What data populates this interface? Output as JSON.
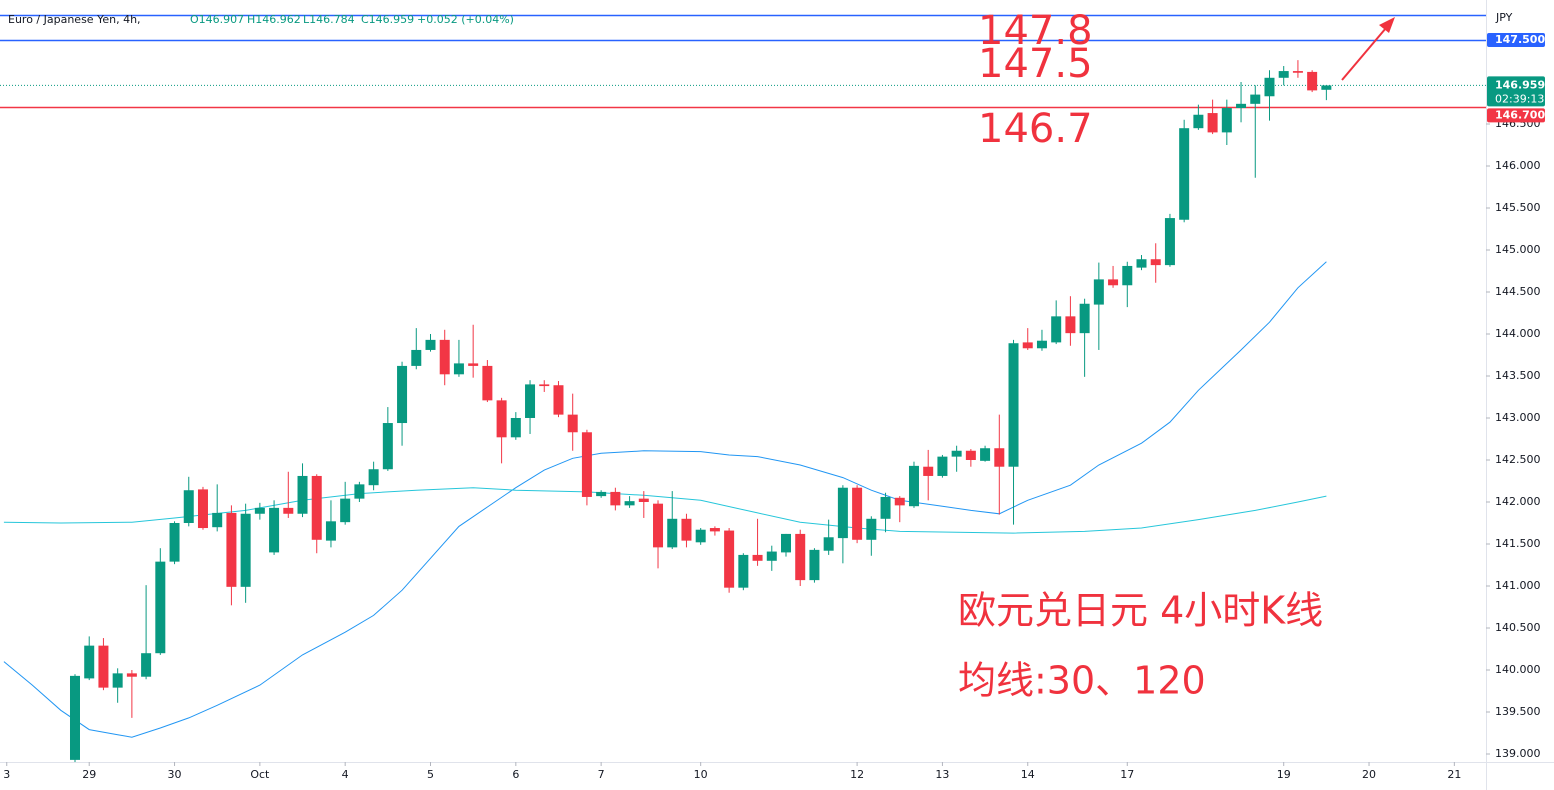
{
  "chart_data": {
    "type": "candlestick",
    "header": {
      "symbol": "Euro / Japanese Yen, 4h,",
      "ohlc": [
        "O146.907",
        "H146.962",
        "L146.784",
        "C146.959"
      ],
      "change": "+0.052 (+0.04%)"
    },
    "currency": "JPY",
    "up_color": "#089981",
    "down_color": "#f23645",
    "open": [
      138.93,
      139.9,
      140.29,
      139.79,
      139.96,
      139.92,
      140.2,
      141.29,
      141.75,
      142.15,
      141.7,
      141.87,
      140.99,
      141.86,
      141.4,
      141.93,
      141.86,
      142.31,
      141.54,
      141.76,
      142.04,
      142.2,
      142.39,
      142.94,
      143.62,
      143.81,
      143.93,
      143.52,
      143.65,
      143.62,
      143.21,
      142.77,
      143.0,
      143.4,
      143.39,
      143.04,
      142.83,
      142.07,
      142.12,
      141.96,
      142.04,
      141.98,
      141.46,
      141.8,
      141.52,
      141.69,
      141.66,
      140.98,
      141.37,
      141.3,
      141.4,
      141.62,
      141.07,
      141.42,
      141.57,
      142.17,
      141.55,
      141.8,
      142.05,
      141.95,
      142.42,
      142.31,
      142.54,
      142.61,
      142.49,
      142.64,
      142.42,
      143.9,
      143.83,
      143.9,
      144.21,
      144.01,
      144.35,
      144.65,
      144.58,
      144.79,
      144.89,
      144.82,
      145.36,
      146.45,
      146.63,
      146.4,
      146.69,
      146.74,
      146.83,
      147.05,
      147.13,
      147.12,
      146.907
    ],
    "high": [
      139.95,
      140.4,
      140.38,
      140.02,
      140.0,
      141.01,
      141.45,
      141.77,
      142.3,
      142.18,
      142.21,
      141.96,
      141.98,
      141.99,
      142.02,
      142.36,
      142.46,
      142.33,
      142.02,
      142.24,
      142.24,
      142.48,
      143.13,
      143.67,
      144.07,
      144.0,
      144.05,
      143.93,
      144.11,
      143.69,
      143.24,
      143.07,
      143.45,
      143.45,
      143.44,
      143.29,
      142.86,
      142.14,
      142.17,
      142.07,
      142.13,
      142.02,
      142.13,
      141.86,
      141.69,
      141.71,
      141.69,
      141.39,
      141.8,
      141.48,
      141.62,
      141.67,
      141.45,
      141.79,
      142.2,
      142.2,
      141.83,
      142.11,
      142.07,
      142.48,
      142.62,
      142.56,
      142.67,
      142.63,
      142.67,
      143.04,
      143.93,
      144.07,
      144.05,
      144.4,
      144.45,
      144.42,
      144.85,
      144.81,
      144.86,
      144.94,
      145.08,
      145.43,
      146.55,
      146.73,
      146.79,
      146.79,
      147.0,
      146.96,
      147.14,
      147.19,
      147.26,
      147.14,
      146.962
    ],
    "low": [
      138.85,
      139.88,
      139.76,
      139.61,
      139.43,
      139.89,
      140.18,
      141.26,
      141.71,
      141.67,
      141.65,
      140.77,
      140.8,
      141.79,
      141.37,
      141.81,
      141.82,
      141.39,
      141.46,
      141.73,
      142.0,
      142.14,
      142.37,
      142.67,
      143.58,
      143.79,
      143.39,
      143.49,
      143.48,
      143.19,
      142.46,
      142.74,
      142.81,
      143.31,
      143.01,
      142.61,
      141.96,
      142.05,
      141.9,
      141.93,
      141.81,
      141.21,
      141.44,
      141.46,
      141.49,
      141.6,
      140.92,
      140.95,
      141.24,
      141.18,
      141.35,
      141.0,
      141.04,
      141.37,
      141.27,
      141.51,
      141.36,
      141.64,
      141.76,
      141.93,
      142.02,
      142.29,
      142.36,
      142.42,
      142.48,
      141.85,
      141.73,
      143.81,
      143.8,
      143.88,
      143.86,
      143.49,
      143.81,
      144.55,
      144.32,
      144.76,
      144.61,
      144.8,
      145.33,
      146.43,
      146.38,
      146.25,
      146.52,
      145.86,
      146.54,
      146.96,
      147.05,
      146.88,
      146.784
    ],
    "close": [
      139.93,
      140.29,
      139.79,
      139.96,
      139.92,
      140.2,
      141.29,
      141.75,
      142.14,
      141.69,
      141.87,
      140.99,
      141.86,
      141.93,
      141.93,
      141.86,
      142.31,
      141.55,
      141.77,
      142.04,
      142.21,
      142.39,
      142.94,
      143.62,
      143.81,
      143.93,
      143.52,
      143.65,
      143.62,
      143.21,
      142.77,
      143.0,
      143.4,
      143.38,
      143.04,
      142.83,
      142.06,
      142.12,
      141.96,
      142.01,
      142.0,
      141.46,
      141.8,
      141.54,
      141.67,
      141.65,
      140.98,
      141.37,
      141.3,
      141.41,
      141.62,
      141.07,
      141.43,
      141.58,
      142.17,
      141.55,
      141.8,
      142.06,
      141.96,
      142.43,
      142.31,
      142.54,
      142.61,
      142.5,
      142.64,
      142.42,
      143.89,
      143.83,
      143.92,
      144.21,
      144.01,
      144.36,
      144.65,
      144.58,
      144.81,
      144.89,
      144.82,
      145.38,
      146.45,
      146.61,
      146.4,
      146.69,
      146.74,
      146.85,
      147.05,
      147.13,
      147.11,
      146.9,
      146.959
    ],
    "moving_averages": [
      {
        "color": "#2196f3",
        "x": [
          -5,
          -3,
          -1,
          1,
          3,
          4,
          6,
          8,
          10,
          13,
          16,
          19,
          21,
          23,
          25,
          27,
          29,
          31,
          33,
          35,
          37,
          40,
          44,
          46,
          48,
          51,
          54,
          56,
          58,
          61,
          63,
          65,
          67,
          70,
          72,
          75,
          77,
          79,
          82,
          84,
          86,
          88
        ],
        "values": [
          140.1,
          139.82,
          139.52,
          139.29,
          139.23,
          139.2,
          139.31,
          139.43,
          139.58,
          139.82,
          140.18,
          140.45,
          140.65,
          140.95,
          141.33,
          141.71,
          141.94,
          142.17,
          142.38,
          142.52,
          142.58,
          142.61,
          142.6,
          142.56,
          142.54,
          142.44,
          142.29,
          142.14,
          142.02,
          141.95,
          141.9,
          141.86,
          142.02,
          142.2,
          142.44,
          142.7,
          142.95,
          143.33,
          143.81,
          144.14,
          144.55,
          144.86
        ]
      },
      {
        "color": "#26c6da",
        "x": [
          -5,
          -1,
          4,
          7,
          12,
          16,
          20,
          24,
          28,
          31,
          36,
          40,
          44,
          48,
          51,
          55,
          58,
          62,
          66,
          71,
          75,
          79,
          83,
          86,
          88
        ],
        "values": [
          141.76,
          141.75,
          141.76,
          141.81,
          141.9,
          142.02,
          142.1,
          142.14,
          142.17,
          142.14,
          142.12,
          142.08,
          142.02,
          141.87,
          141.76,
          141.69,
          141.65,
          141.64,
          141.63,
          141.65,
          141.69,
          141.79,
          141.9,
          142.0,
          142.07
        ]
      }
    ],
    "hlines": [
      {
        "value": 147.8,
        "color": "#2962ff"
      },
      {
        "value": 147.5,
        "color": "#2962ff",
        "label": "147.500"
      },
      {
        "value": 146.7,
        "color": "#f23645",
        "label": "146.700"
      }
    ],
    "last_price": {
      "value": 146.959,
      "label": "146.959",
      "countdown": "02:39:13"
    },
    "annotations": [
      "147.8",
      "147.5",
      "146.7",
      "欧元兑日元 4小时K线",
      "均线:30、120"
    ],
    "annotation_color": "#f0323e",
    "xlim": [
      -5.274,
      99.226
    ],
    "xticks": [
      {
        "value": -4.8,
        "label": "3"
      },
      {
        "value": 1,
        "label": "29"
      },
      {
        "value": 7,
        "label": "30"
      },
      {
        "value": 13,
        "label": "Oct"
      },
      {
        "value": 19,
        "label": "4"
      },
      {
        "value": 25,
        "label": "5"
      },
      {
        "value": 31,
        "label": "6"
      },
      {
        "value": 37,
        "label": "7"
      },
      {
        "value": 44,
        "label": "10"
      },
      {
        "value": 55,
        "label": "12"
      },
      {
        "value": 61,
        "label": "13"
      },
      {
        "value": 67,
        "label": "14"
      },
      {
        "value": 74,
        "label": "17"
      },
      {
        "value": 85,
        "label": "19"
      },
      {
        "value": 91,
        "label": "20"
      },
      {
        "value": 97,
        "label": "21"
      }
    ],
    "ylim": [
      138.9,
      147.976
    ],
    "yticks": [
      {
        "value": 139,
        "label": "139.000"
      },
      {
        "value": 139.5,
        "label": "139.500"
      },
      {
        "value": 140,
        "label": "140.000"
      },
      {
        "value": 140.5,
        "label": "140.500"
      },
      {
        "value": 141,
        "label": "141.000"
      },
      {
        "value": 141.5,
        "label": "141.500"
      },
      {
        "value": 142,
        "label": "142.000"
      },
      {
        "value": 142.5,
        "label": "142.500"
      },
      {
        "value": 143,
        "label": "143.000"
      },
      {
        "value": 143.5,
        "label": "143.500"
      },
      {
        "value": 144,
        "label": "144.000"
      },
      {
        "value": 144.5,
        "label": "144.500"
      },
      {
        "value": 145,
        "label": "145.000"
      },
      {
        "value": 145.5,
        "label": "145.500"
      },
      {
        "value": 146,
        "label": "146.000"
      },
      {
        "value": 146.5,
        "label": "146.500"
      }
    ]
  }
}
